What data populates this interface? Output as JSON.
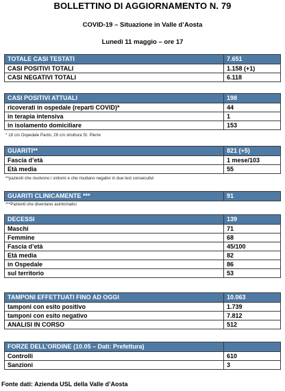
{
  "header": {
    "title": "BOLLETTINO DI AGGIORNAMENTO N. 79",
    "subtitle": "COVID-19 – Situazione in Valle d’Aosta",
    "date": "Lunedì 11 maggio – ore 17"
  },
  "sections": {
    "tests": {
      "header": {
        "label": "TOTALE CASI TESTATI",
        "value": "7.651"
      },
      "rows": [
        {
          "label": "CASI POSITIVI TOTALI",
          "value": "1.158 (+1)"
        },
        {
          "label": "CASI NEGATIVI TOTALI",
          "value": "6.118"
        }
      ]
    },
    "active": {
      "header": {
        "label": "CASI POSITIVI ATTUALI",
        "value": "198"
      },
      "rows": [
        {
          "label": "ricoverati in ospedale (reparti COVID)*",
          "value": "44"
        },
        {
          "label": "in terapia intensiva",
          "value": "1"
        },
        {
          "label": "in isolamento domiciliare",
          "value": "153"
        }
      ],
      "note": "* 18 c/o Ospedale Parini, 26 c/o struttura St. Pierre"
    },
    "recovered": {
      "header": {
        "label": "GUARITI**",
        "value": "821 (+5)"
      },
      "rows": [
        {
          "label": "Fascia d’età",
          "value": "1 mese/103"
        },
        {
          "label": "Età media",
          "value": "55"
        }
      ],
      "note": "**pazienti che risolvono i sintomi e che risultano negativi in due test consecutivi"
    },
    "clinically": {
      "header": {
        "label": "GUARITI CLINICAMENTE ***",
        "value": "91"
      },
      "note": "***Pazienti che diventano asintomatici"
    },
    "deaths": {
      "header": {
        "label": "DECESSI",
        "value": "139"
      },
      "rows": [
        {
          "label": "Maschi",
          "value": "71"
        },
        {
          "label": "Femmine",
          "value": "68"
        },
        {
          "label": "Fascia d’età",
          "value": "45/100"
        },
        {
          "label": "Età media",
          "value": "82"
        },
        {
          "label": "in Ospedale",
          "value": "86"
        },
        {
          "label": "sul territorio",
          "value": "53"
        }
      ]
    },
    "swabs": {
      "header": {
        "label": "TAMPONI EFFETTUATI FINO AD OGGI",
        "value": "10.063"
      },
      "rows": [
        {
          "label": "tamponi con esito positivo",
          "value": "1.739"
        },
        {
          "label": "tamponi con esito negativo",
          "value": "7.812"
        },
        {
          "label": "ANALISI IN CORSO",
          "value": "512"
        }
      ]
    },
    "police": {
      "header": {
        "label": "FORZE DELL’ORDINE (10.05 – Dati: Prefettura)",
        "value": ""
      },
      "rows": [
        {
          "label": "Controlli",
          "value": "610"
        },
        {
          "label": "Sanzioni",
          "value": "3"
        }
      ]
    }
  },
  "footer": "Fonte dati: Azienda USL della Valle d’Aosta",
  "colors": {
    "header_bg": "#4f7aa4",
    "header_text": "#ffffff"
  }
}
